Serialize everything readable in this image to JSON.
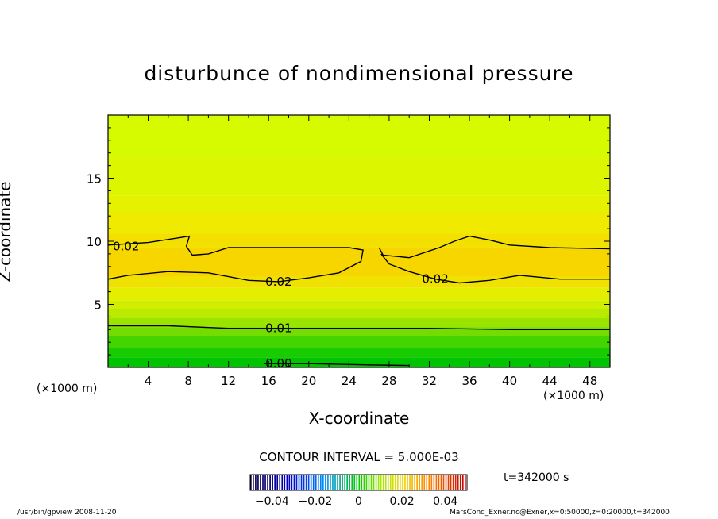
{
  "chart_data": {
    "type": "heatmap",
    "title": "disturbunce of nondimensional pressure",
    "xlabel": "X-coordinate",
    "ylabel": "Z-coordinate",
    "x_unit": "(×1000 m)",
    "xlim": [
      0,
      50
    ],
    "ylim": [
      0,
      20
    ],
    "x_ticks": [
      4,
      8,
      12,
      16,
      20,
      24,
      28,
      32,
      36,
      40,
      44,
      48
    ],
    "y_ticks": [
      5,
      10,
      15
    ],
    "contour_interval_label": "CONTOUR INTERVAL = 5.000E-03",
    "contour_labels": [
      {
        "text": "0.02",
        "x": 1.8,
        "y": 9.6
      },
      {
        "text": "0.02",
        "x": 17.0,
        "y": 6.8
      },
      {
        "text": "0.02",
        "x": 32.6,
        "y": 7.0
      },
      {
        "text": "0.01",
        "x": 17.0,
        "y": 3.1
      },
      {
        "text": "0.00",
        "x": 17.0,
        "y": 0.3
      }
    ],
    "contours": [
      {
        "level": 0.02,
        "points": [
          [
            0,
            7.0
          ],
          [
            2,
            7.3
          ],
          [
            6,
            7.6
          ],
          [
            10,
            7.5
          ],
          [
            14,
            6.9
          ],
          [
            17,
            6.8
          ],
          [
            20,
            7.1
          ],
          [
            23,
            7.5
          ],
          [
            25.2,
            8.4
          ],
          [
            25.4,
            9.3
          ],
          [
            24,
            9.5
          ],
          [
            20,
            9.5
          ],
          [
            16,
            9.5
          ],
          [
            12,
            9.5
          ],
          [
            10,
            9.0
          ],
          [
            8.4,
            8.9
          ],
          [
            7.8,
            9.6
          ],
          [
            8.1,
            10.4
          ],
          [
            7.3,
            10.3
          ],
          [
            4,
            9.9
          ],
          [
            0,
            9.7
          ]
        ]
      },
      {
        "level": 0.02,
        "points": [
          [
            27.0,
            9.5
          ],
          [
            27.4,
            8.9
          ],
          [
            30,
            8.7
          ],
          [
            33,
            9.5
          ],
          [
            34.5,
            10.0
          ],
          [
            36,
            10.4
          ],
          [
            38,
            10.1
          ],
          [
            40,
            9.7
          ],
          [
            44,
            9.5
          ],
          [
            50,
            9.4
          ]
        ]
      },
      {
        "level": 0.02,
        "points": [
          [
            27.2,
            9.0
          ],
          [
            28,
            8.2
          ],
          [
            30,
            7.6
          ],
          [
            32.6,
            7.0
          ],
          [
            35,
            6.7
          ],
          [
            38,
            6.9
          ],
          [
            41,
            7.3
          ],
          [
            45,
            7.0
          ],
          [
            50,
            7.0
          ]
        ]
      },
      {
        "level": 0.01,
        "points": [
          [
            0,
            3.3
          ],
          [
            6,
            3.3
          ],
          [
            12,
            3.1
          ],
          [
            17,
            3.1
          ],
          [
            24,
            3.1
          ],
          [
            32,
            3.1
          ],
          [
            40,
            3.0
          ],
          [
            50,
            3.0
          ]
        ]
      },
      {
        "level": 0.0,
        "points": [
          [
            15.5,
            0.3
          ],
          [
            20,
            0.3
          ],
          [
            26,
            0.2
          ],
          [
            30,
            0.15
          ]
        ]
      }
    ],
    "fill_bands": [
      {
        "y_top": 20.0,
        "color": "#d6fb00"
      },
      {
        "y_top": 16.6,
        "color": "#dcf600"
      },
      {
        "y_top": 13.6,
        "color": "#e6f100"
      },
      {
        "y_top": 12.2,
        "color": "#efea00"
      },
      {
        "y_top": 10.6,
        "color": "#f3e000"
      },
      {
        "y_top": 9.5,
        "color": "#f7d600"
      },
      {
        "y_top": 7.2,
        "color": "#f0e200"
      },
      {
        "y_top": 6.3,
        "color": "#e3ee00"
      },
      {
        "y_top": 5.3,
        "color": "#d0ee00"
      },
      {
        "y_top": 4.6,
        "color": "#b9ea00"
      },
      {
        "y_top": 3.9,
        "color": "#9be400"
      },
      {
        "y_top": 3.2,
        "color": "#73dc00"
      },
      {
        "y_top": 2.5,
        "color": "#44d400"
      },
      {
        "y_top": 1.6,
        "color": "#18cc00"
      },
      {
        "y_top": 0.8,
        "color": "#00c400"
      }
    ],
    "colorbar": {
      "ticks": [
        "−0.04",
        "−0.02",
        "0",
        "0.02",
        "0.04"
      ],
      "range": [
        -0.05,
        0.05
      ]
    },
    "time_label": "t=342000 s"
  },
  "footer": {
    "left": "/usr/bin/gpview   2008-11-20",
    "right": "MarsCond_Exner.nc@Exner,x=0:50000,z=0:20000,t=342000"
  }
}
